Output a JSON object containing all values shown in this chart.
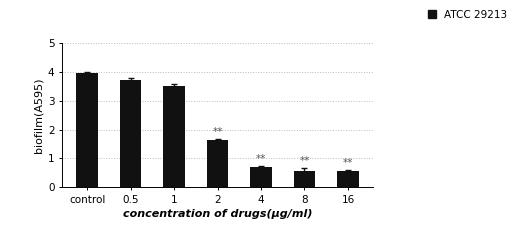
{
  "categories": [
    "control",
    "0.5",
    "1",
    "2",
    "4",
    "8",
    "16"
  ],
  "values": [
    3.97,
    3.73,
    3.5,
    1.63,
    0.7,
    0.57,
    0.55
  ],
  "errors": [
    0.04,
    0.06,
    0.07,
    0.06,
    0.05,
    0.1,
    0.04
  ],
  "bar_color": "#111111",
  "error_color": "#111111",
  "ylabel": "biofilm(A595)",
  "xlabel": "concentration of drugs(μg/ml)",
  "ylim": [
    0,
    5
  ],
  "yticks": [
    0,
    1,
    2,
    3,
    4,
    5
  ],
  "legend_label": "ATCC 29213",
  "legend_color": "#111111",
  "significance": [
    "",
    "",
    "",
    "**",
    "**",
    "**",
    "**"
  ],
  "sig_color": "#555555",
  "background_color": "#ffffff",
  "grid_color": "#bbbbbb"
}
